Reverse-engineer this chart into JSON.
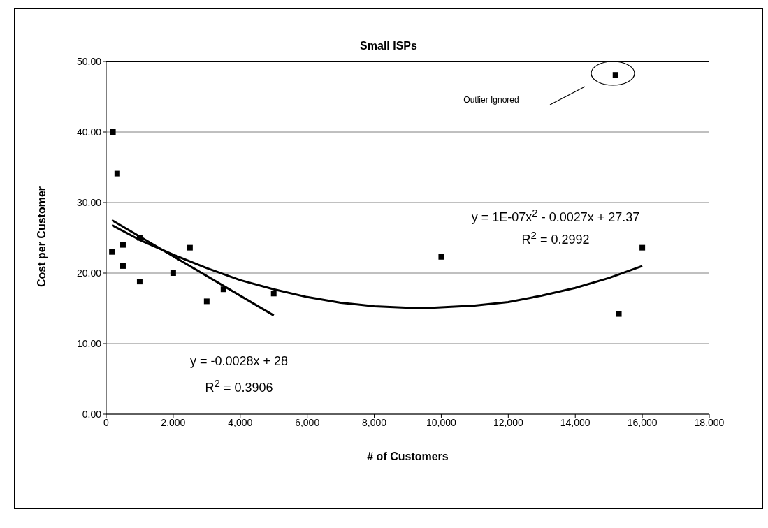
{
  "chart_data": {
    "type": "scatter",
    "title": "Small ISPs",
    "xlabel": "# of Customers",
    "ylabel": "Cost per Customer",
    "xlim": [
      0,
      18000
    ],
    "xticks": [
      0,
      {
        "value": 2000,
        "label": "2,000"
      },
      {
        "value": 4000,
        "label": "4,000"
      },
      {
        "value": 6000,
        "label": "6,000"
      },
      {
        "value": 8000,
        "label": "8,000"
      },
      {
        "value": 10000,
        "label": "10,000"
      },
      {
        "value": 12000,
        "label": "12,000"
      },
      {
        "value": 14000,
        "label": "14,000"
      },
      {
        "value": 16000,
        "label": "16,000"
      },
      {
        "value": 18000,
        "label": "18,000"
      }
    ],
    "ylim": [
      0,
      50
    ],
    "yticks": [
      {
        "value": 0,
        "label": "0.00"
      },
      {
        "value": 10,
        "label": "10.00"
      },
      {
        "value": 20,
        "label": "20.00"
      },
      {
        "value": 30,
        "label": "30.00"
      },
      {
        "value": 40,
        "label": "40.00"
      },
      {
        "value": 50,
        "label": "50.00"
      }
    ],
    "grid": "y",
    "marker": "square",
    "series": [
      {
        "color": "#000000",
        "x": [
          200,
          330,
          170,
          500,
          500,
          1000,
          1000,
          2000,
          2500,
          3000,
          3500,
          5000,
          10000,
          16000,
          15300,
          15200
        ],
        "values": [
          40.0,
          34.1,
          23.0,
          24.0,
          21.0,
          25.0,
          18.8,
          20.0,
          23.6,
          16.0,
          17.7,
          17.1,
          22.3,
          23.6,
          14.2,
          48.1
        ]
      },
      {
        "type": "line",
        "color": "#000000",
        "marker": "none",
        "x": [
          170,
          5000
        ],
        "values": [
          27.5,
          14.0
        ]
      },
      {
        "type": "line",
        "color": "#000000",
        "marker": "none",
        "x": [
          170,
          1000,
          2000,
          3000,
          4000,
          5000,
          6000,
          7000,
          8000,
          9400,
          11000,
          12000,
          13000,
          14000,
          15000,
          16000
        ],
        "values": [
          26.8,
          24.7,
          22.6,
          20.7,
          19.0,
          17.7,
          16.6,
          15.8,
          15.3,
          15.0,
          15.4,
          15.9,
          16.8,
          17.9,
          19.3,
          21.0
        ]
      }
    ],
    "annotations": [
      "y = 1E-07x$^{2}$ - 0.0027x + 27.37",
      "R$^{2}$ = 0.2992",
      "y = -0.0028x + 28",
      "R$^{2}$ = 0.3906",
      "Outlier Ignored"
    ]
  }
}
